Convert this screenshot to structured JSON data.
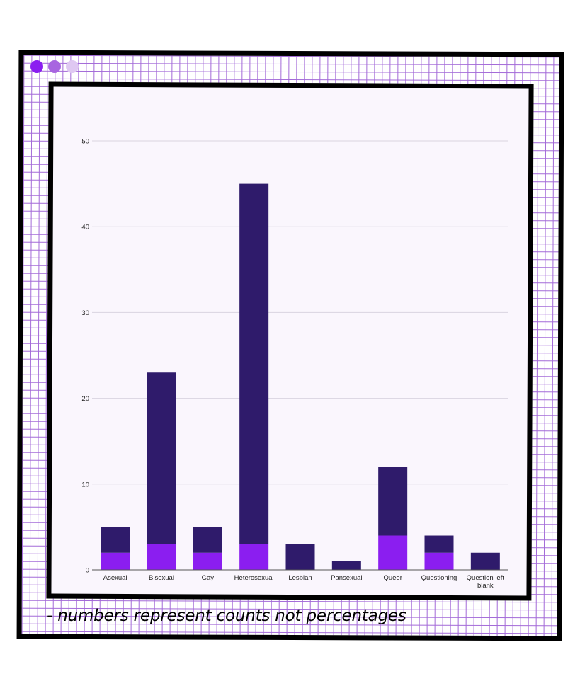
{
  "window": {
    "dots": [
      {
        "name": "window-dot-1",
        "color": "#8b1ef0"
      },
      {
        "name": "window-dot-2",
        "color": "#a865e0"
      },
      {
        "name": "window-dot-3",
        "color": "#dfc8f2"
      }
    ]
  },
  "colors": {
    "series_dark": "#2f1b6b",
    "series_light": "#8b1ef0",
    "gridline": "#d9d4e0",
    "axis": "#555555"
  },
  "caption": "- numbers represent counts not percentages",
  "chart_data": {
    "type": "bar",
    "stacked": true,
    "categories": [
      "Asexual",
      "Bisexual",
      "Gay",
      "Heterosexual",
      "Lesbian",
      "Pansexual",
      "Queer",
      "Questioning",
      "Question left blank"
    ],
    "series": [
      {
        "values": [
          2,
          3,
          2,
          3,
          0,
          0,
          4,
          2,
          0
        ],
        "color": "#8b1ef0"
      },
      {
        "values": [
          3,
          20,
          3,
          42,
          3,
          1,
          8,
          2,
          2
        ],
        "color": "#2f1b6b"
      }
    ],
    "totals": [
      5,
      23,
      5,
      45,
      3,
      1,
      12,
      4,
      2
    ],
    "yticks": [
      0,
      10,
      20,
      30,
      40,
      50
    ],
    "ylim": [
      0,
      50
    ],
    "grid": true,
    "title": "",
    "xlabel": "",
    "ylabel": ""
  }
}
